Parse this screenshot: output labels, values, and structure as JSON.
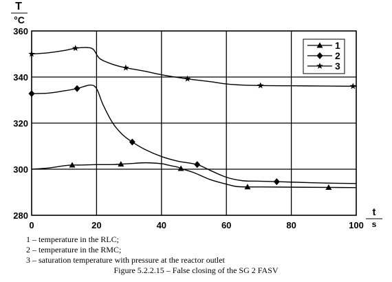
{
  "chart_data": {
    "type": "line",
    "title": "",
    "xlabel": "t",
    "xunit": "s",
    "ylabel": "T",
    "yunit": "°C",
    "xlim": [
      0,
      100
    ],
    "ylim": [
      280,
      360
    ],
    "xticks": [
      0,
      20,
      40,
      60,
      80,
      100
    ],
    "yticks": [
      280,
      300,
      320,
      340,
      360
    ],
    "grid": true,
    "legend_position": "top-right",
    "series": [
      {
        "name": "1",
        "marker": "triangle",
        "x": [
          0,
          5,
          10,
          12.5,
          15,
          20,
          25,
          27.5,
          30,
          35,
          40,
          42,
          45,
          46,
          50,
          55,
          60,
          63,
          66.5,
          70,
          80,
          90,
          91.5,
          100
        ],
        "y": [
          300,
          300.5,
          301.5,
          301.8,
          301.8,
          302,
          302,
          302.2,
          302.4,
          302.8,
          302.4,
          301.8,
          300.9,
          300.3,
          298.5,
          295.5,
          293.5,
          292.5,
          292.3,
          292.3,
          292.2,
          292.1,
          292.1,
          292
        ]
      },
      {
        "name": "2",
        "marker": "diamond",
        "x": [
          0,
          5,
          10,
          14,
          18,
          20,
          22,
          25,
          28,
          31,
          35,
          40,
          45,
          51,
          55,
          60,
          65,
          70,
          75.5,
          80,
          90,
          100
        ],
        "y": [
          332.8,
          333,
          334,
          335,
          336.5,
          335,
          328,
          320,
          315,
          311.8,
          308.5,
          305.5,
          303.5,
          302,
          299.5,
          296.5,
          295,
          294.8,
          294.6,
          294.4,
          294,
          293.8
        ]
      },
      {
        "name": "3",
        "marker": "star",
        "x": [
          0,
          5,
          10,
          13.5,
          17,
          19,
          21,
          25,
          29,
          35,
          40,
          48,
          55,
          60,
          65,
          70.5,
          80,
          90,
          99,
          100
        ],
        "y": [
          350,
          350.5,
          351.5,
          352.5,
          352.8,
          352,
          348,
          345.5,
          344,
          342.5,
          341,
          339.2,
          338,
          337,
          336.5,
          336.3,
          336.2,
          336.1,
          336,
          336
        ]
      }
    ],
    "caption_lines": [
      "1 – temperature in the RLC;",
      "2 – temperature in the RMC;",
      "3 – saturation temperature with pressure at the reactor outlet",
      "Figure 5.2.2.15 – False closing of the SG 2 FASV"
    ]
  },
  "colors": {
    "line": "#000000",
    "grid": "#000000",
    "background": "#ffffff"
  }
}
